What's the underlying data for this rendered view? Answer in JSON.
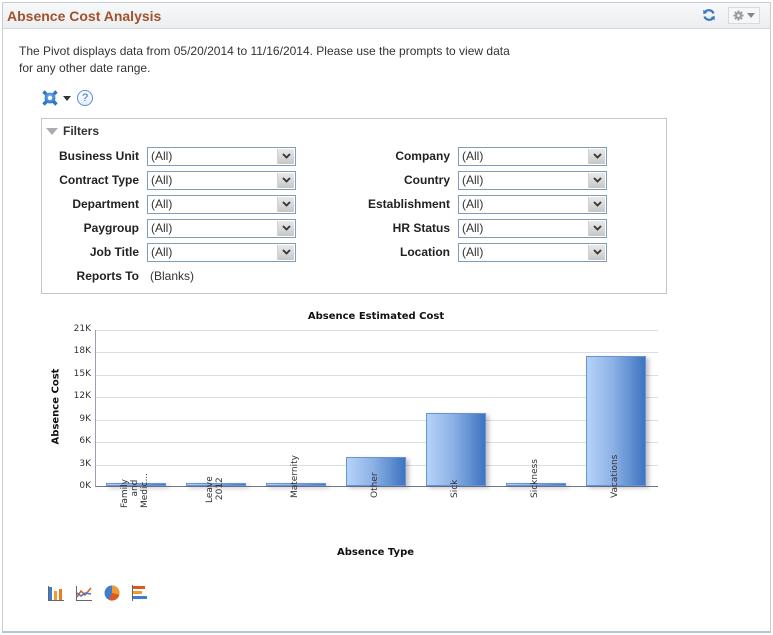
{
  "panel": {
    "title": "Absence Cost Analysis",
    "refresh_icon": "refresh-icon",
    "options_icon": "gear-icon"
  },
  "intro": {
    "text": "The Pivot displays data from 05/20/2014 to 11/16/2014. Please use the prompts to view data for any other date range."
  },
  "toolbar": {
    "options_icon": "gear-icon",
    "help_icon": "help-icon",
    "help_glyph": "?"
  },
  "filters": {
    "title": "Filters",
    "left": [
      {
        "label": "Business Unit",
        "value": "(All)"
      },
      {
        "label": "Contract Type",
        "value": "(All)"
      },
      {
        "label": "Department",
        "value": "(All)"
      },
      {
        "label": "Paygroup",
        "value": "(All)"
      },
      {
        "label": "Job Title",
        "value": "(All)"
      },
      {
        "label": "Reports To",
        "value": "(Blanks)"
      }
    ],
    "right": [
      {
        "label": "Company",
        "value": "(All)"
      },
      {
        "label": "Country",
        "value": "(All)"
      },
      {
        "label": "Establishment",
        "value": "(All)"
      },
      {
        "label": "HR Status",
        "value": "(All)"
      },
      {
        "label": "Location",
        "value": "(All)"
      }
    ]
  },
  "chart_data": {
    "type": "bar",
    "title": "Absence Estimated Cost",
    "xlabel": "Absence Type",
    "ylabel": "Absence Cost",
    "categories": [
      "Family and Medic...",
      "Leave 2012",
      "Maternity",
      "Other",
      "Sick",
      "Sickness",
      "Vacations"
    ],
    "category_display": [
      "Family\n    and\nMedic...",
      "Leave\n 2012",
      "Maternity",
      "Other",
      "Sick",
      "Sickness",
      "Vacations"
    ],
    "values": [
      400,
      400,
      400,
      3900,
      9800,
      400,
      17400
    ],
    "yticks": [
      "0K",
      "3K",
      "6K",
      "9K",
      "12K",
      "15K",
      "18K",
      "21K"
    ],
    "ylim": [
      0,
      21000
    ],
    "grid": true,
    "legend": "none",
    "bar_color": "#4f82c9"
  },
  "chart_types": [
    {
      "name": "bar-chart-icon"
    },
    {
      "name": "line-chart-icon"
    },
    {
      "name": "pie-chart-icon"
    },
    {
      "name": "horizontal-bar-chart-icon"
    }
  ]
}
